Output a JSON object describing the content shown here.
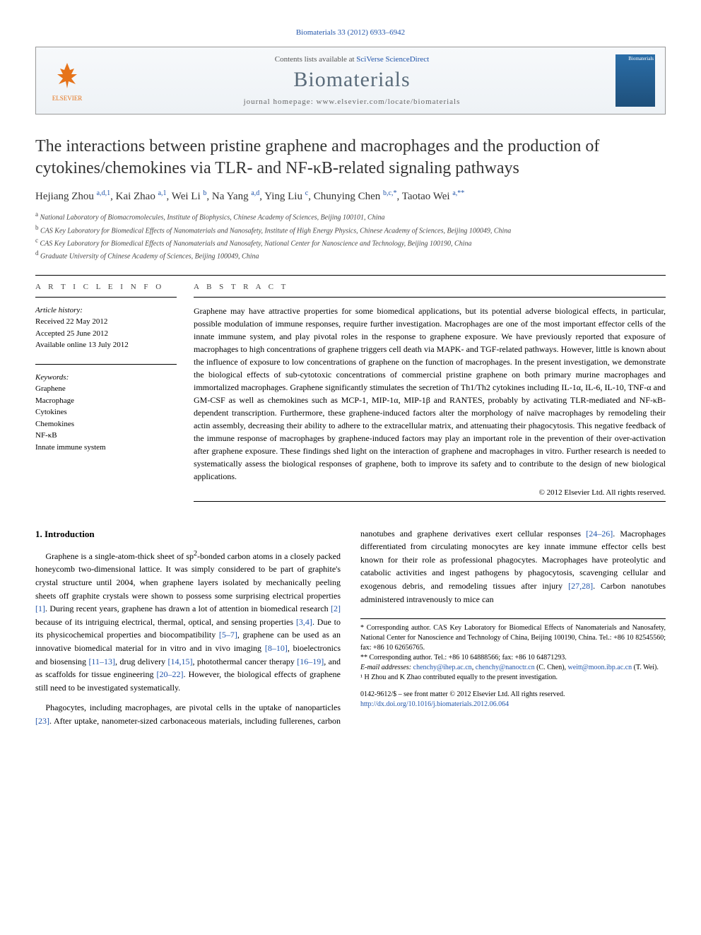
{
  "citation": "Biomaterials 33 (2012) 6933–6942",
  "header": {
    "contents_prefix": "Contents lists available at ",
    "contents_link": "SciVerse ScienceDirect",
    "journal": "Biomaterials",
    "homepage_prefix": "journal homepage: ",
    "homepage_url": "www.elsevier.com/locate/biomaterials",
    "publisher": "ELSEVIER",
    "cover_label": "Biomaterials"
  },
  "title": "The interactions between pristine graphene and macrophages and the production of cytokines/chemokines via TLR- and NF-κB-related signaling pathways",
  "authors_html": "Hejiang Zhou <sup>a,d,1</sup>, Kai Zhao <sup>a,1</sup>, Wei Li <sup>b</sup>, Na Yang <sup>a,d</sup>, Ying Liu <sup>c</sup>, Chunying Chen <sup>b,c,*</sup>, Taotao Wei <sup>a,**</sup>",
  "affiliations": [
    {
      "sup": "a",
      "text": "National Laboratory of Biomacromolecules, Institute of Biophysics, Chinese Academy of Sciences, Beijing 100101, China"
    },
    {
      "sup": "b",
      "text": "CAS Key Laboratory for Biomedical Effects of Nanomaterials and Nanosafety, Institute of High Energy Physics, Chinese Academy of Sciences, Beijing 100049, China"
    },
    {
      "sup": "c",
      "text": "CAS Key Laboratory for Biomedical Effects of Nanomaterials and Nanosafety, National Center for Nanoscience and Technology, Beijing 100190, China"
    },
    {
      "sup": "d",
      "text": "Graduate University of Chinese Academy of Sciences, Beijing 100049, China"
    }
  ],
  "info_label": "A R T I C L E  I N F O",
  "abstract_label": "A B S T R A C T",
  "history": {
    "label": "Article history:",
    "received": "Received 22 May 2012",
    "accepted": "Accepted 25 June 2012",
    "online": "Available online 13 July 2012"
  },
  "keywords": {
    "label": "Keywords:",
    "items": [
      "Graphene",
      "Macrophage",
      "Cytokines",
      "Chemokines",
      "NF-κB",
      "Innate immune system"
    ]
  },
  "abstract": "Graphene may have attractive properties for some biomedical applications, but its potential adverse biological effects, in particular, possible modulation of immune responses, require further investigation. Macrophages are one of the most important effector cells of the innate immune system, and play pivotal roles in the response to graphene exposure. We have previously reported that exposure of macrophages to high concentrations of graphene triggers cell death via MAPK- and TGF-related pathways. However, little is known about the influence of exposure to low concentrations of graphene on the function of macrophages. In the present investigation, we demonstrate the biological effects of sub-cytotoxic concentrations of commercial pristine graphene on both primary murine macrophages and immortalized macrophages. Graphene significantly stimulates the secretion of Th1/Th2 cytokines including IL-1α, IL-6, IL-10, TNF-α and GM-CSF as well as chemokines such as MCP-1, MIP-1α, MIP-1β and RANTES, probably by activating TLR-mediated and NF-κB-dependent transcription. Furthermore, these graphene-induced factors alter the morphology of naïve macrophages by remodeling their actin assembly, decreasing their ability to adhere to the extracellular matrix, and attenuating their phagocytosis. This negative feedback of the immune response of macrophages by graphene-induced factors may play an important role in the prevention of their over-activation after graphene exposure. These findings shed light on the interaction of graphene and macrophages in vitro. Further research is needed to systematically assess the biological responses of graphene, both to improve its safety and to contribute to the design of new biological applications.",
  "copyright": "© 2012 Elsevier Ltd. All rights reserved.",
  "intro": {
    "heading": "1. Introduction",
    "p1_pre": "Graphene is a single-atom-thick sheet of sp",
    "p1_sup": "2",
    "p1_post": "-bonded carbon atoms in a closely packed honeycomb two-dimensional lattice. It was simply considered to be part of graphite's crystal structure until 2004, when graphene layers isolated by mechanically peeling sheets off graphite crystals were shown to possess some surprising electrical properties ",
    "ref1": "[1]",
    "p1_tail": ". During recent years, graphene has drawn a lot of attention in biomedical research ",
    "ref2": "[2]",
    "p1_end": " because of its intriguing ",
    "p2_a": "electrical, thermal, optical, and sensing properties ",
    "ref34": "[3,4]",
    "p2_b": ". Due to its physicochemical properties and biocompatibility ",
    "ref57": "[5–7]",
    "p2_c": ", graphene can be used as an innovative biomedical material for in vitro and in vivo imaging ",
    "ref810": "[8–10]",
    "p2_d": ", bioelectronics and biosensing ",
    "ref1113": "[11–13]",
    "p2_e": ", drug delivery ",
    "ref1415": "[14,15]",
    "p2_f": ", photothermal cancer therapy ",
    "ref1619": "[16–19]",
    "p2_g": ", and as scaffolds for tissue engineering ",
    "ref2022": "[20–22]",
    "p2_h": ". However, the biological effects of graphene still need to be investigated systematically.",
    "p3_a": "Phagocytes, including macrophages, are pivotal cells in the uptake of nanoparticles ",
    "ref23": "[23]",
    "p3_b": ". After uptake, nanometer-sized carbonaceous materials, including fullerenes, carbon nanotubes and graphene derivatives exert cellular responses ",
    "ref2426": "[24–26]",
    "p3_c": ". Macrophages differentiated from circulating monocytes are key innate immune effector cells best known for their role as professional phagocytes. Macrophages have proteolytic and catabolic activities and ingest pathogens by phagocytosis, scavenging cellular and exogenous debris, and remodeling tissues after injury ",
    "ref2728": "[27,28]",
    "p3_d": ". Carbon nanotubes administered intravenously to mice can"
  },
  "footnotes": {
    "star1": "* Corresponding author. CAS Key Laboratory for Biomedical Effects of Nanomaterials and Nanosafety, National Center for Nanoscience and Technology of China, Beijing 100190, China. Tel.: +86 10 82545560; fax: +86 10 62656765.",
    "star2": "** Corresponding author. Tel.: +86 10 64888566; fax: +86 10 64871293.",
    "emails_label": "E-mail addresses: ",
    "email1": "chenchy@ihep.ac.cn",
    "email2": "chenchy@nanoctr.cn",
    "email_paren1": " (C. Chen), ",
    "email3": "weitt@moon.ibp.ac.cn",
    "email_paren2": " (T. Wei).",
    "note1": "¹ H Zhou and K Zhao contributed equally to the present investigation."
  },
  "footer": {
    "issn_line": "0142-9612/$ – see front matter © 2012 Elsevier Ltd. All rights reserved.",
    "doi": "http://dx.doi.org/10.1016/j.biomaterials.2012.06.064"
  },
  "colors": {
    "link": "#2255aa",
    "journal_name": "#5a6b7a",
    "elsevier_orange": "#e6731a"
  }
}
